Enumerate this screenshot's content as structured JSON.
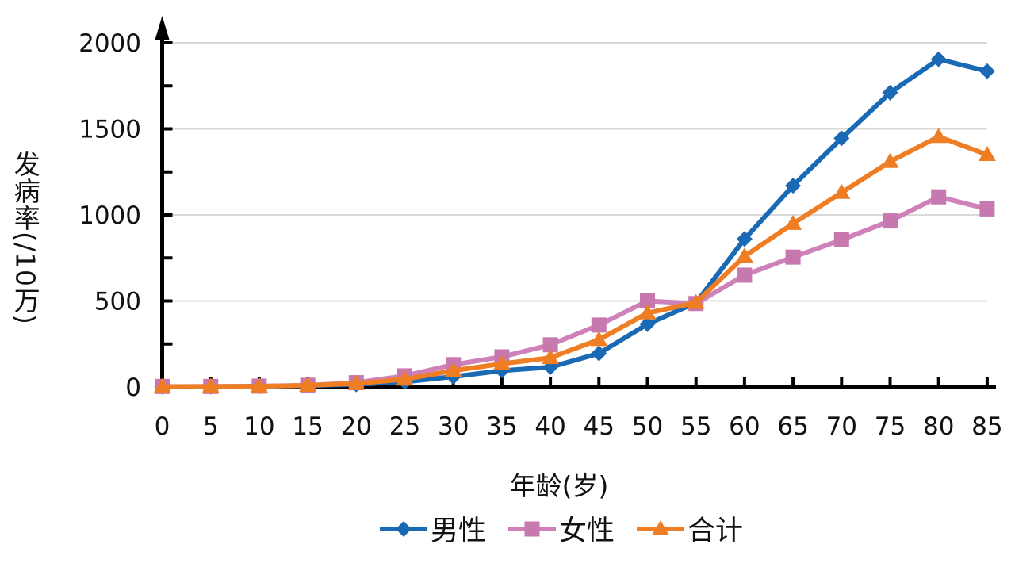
{
  "chart_data": {
    "type": "line",
    "title": "",
    "xlabel": "年龄(岁)",
    "ylabel": "发病率(/10万)",
    "x_categories": [
      0,
      5,
      10,
      15,
      20,
      25,
      30,
      35,
      40,
      45,
      50,
      55,
      60,
      65,
      70,
      75,
      80,
      85
    ],
    "y_ticks": [
      0,
      500,
      1000,
      1500,
      2000
    ],
    "y_minor_tick_step": 250,
    "ylim": [
      0,
      2000
    ],
    "grid": "horizontal",
    "legend_position": "bottom",
    "colors": {
      "grid": "#D9D9D9",
      "axis": "#000000",
      "text": "#111111",
      "background": "#FFFFFF"
    },
    "series": [
      {
        "id": "male",
        "name": "男性",
        "marker": "diamond",
        "color": "#1A69B4",
        "marker_color": "#1A69B4",
        "values": [
          2,
          2,
          3,
          8,
          15,
          30,
          60,
          95,
          115,
          195,
          365,
          490,
          860,
          1170,
          1445,
          1710,
          1905,
          1835
        ]
      },
      {
        "id": "female",
        "name": "女性",
        "marker": "square",
        "color": "#CF82BA",
        "marker_color": "#C678AF",
        "values": [
          3,
          3,
          5,
          10,
          25,
          65,
          130,
          175,
          245,
          360,
          500,
          485,
          650,
          755,
          855,
          965,
          1105,
          1035
        ]
      },
      {
        "id": "total",
        "name": "合计",
        "marker": "triangle",
        "color": "#EE7D24",
        "marker_color": "#EE7D24",
        "values": [
          2,
          3,
          4,
          9,
          20,
          45,
          95,
          135,
          170,
          275,
          430,
          490,
          760,
          950,
          1130,
          1310,
          1455,
          1350
        ]
      }
    ]
  }
}
